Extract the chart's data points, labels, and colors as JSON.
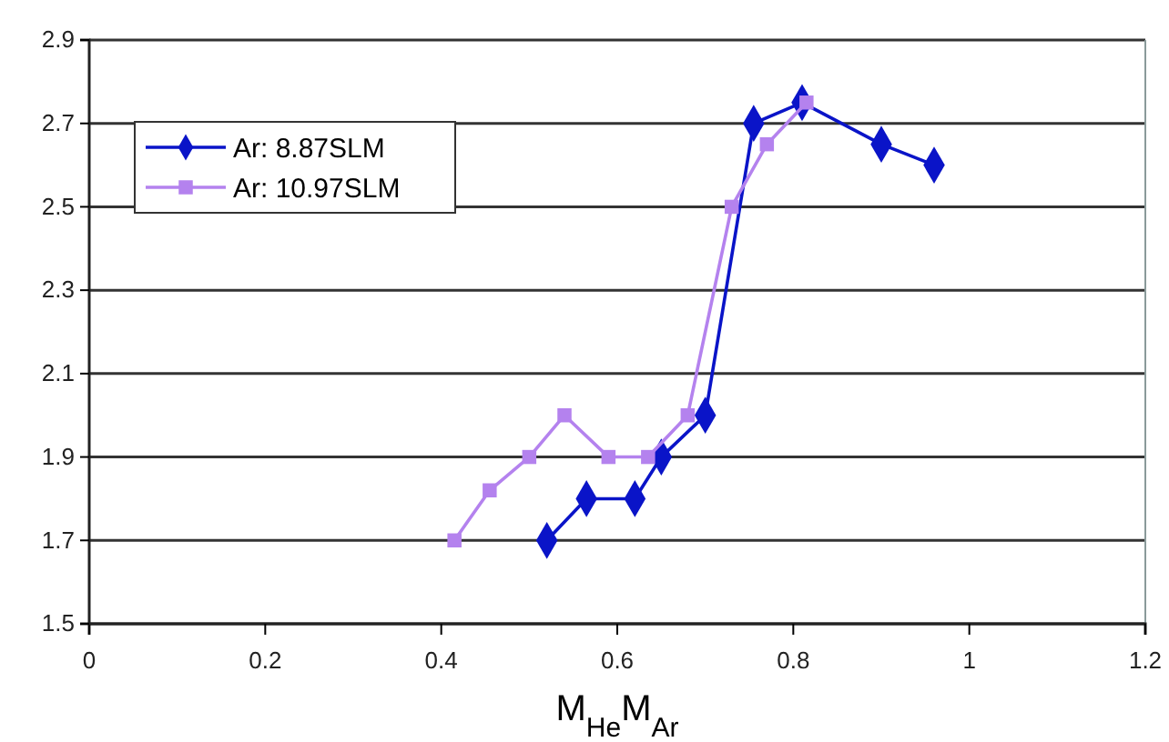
{
  "chart_data": {
    "type": "line",
    "xlabel": "M$_{He}$M$_{Ar}$",
    "xlim": [
      0,
      1.2
    ],
    "xticks": [
      0,
      0.2,
      0.4,
      0.6,
      0.8,
      1,
      1.2
    ],
    "ylim": [
      1.5,
      2.9
    ],
    "yticks": [
      1.5,
      1.7,
      1.9,
      2.1,
      2.3,
      2.5,
      2.7,
      2.9
    ],
    "grid": "y",
    "legend": "top left",
    "series": [
      {
        "name": "Ar: 8.87SLM",
        "color": "#0a14c8",
        "marker": "diamond",
        "x": [
          0.52,
          0.565,
          0.62,
          0.65,
          0.7,
          0.755,
          0.81,
          0.9,
          0.96
        ],
        "values": [
          1.7,
          1.8,
          1.8,
          1.9,
          2.0,
          2.7,
          2.75,
          2.65,
          2.6
        ]
      },
      {
        "name": "Ar: 10.97SLM",
        "color": "#b482ee",
        "marker": "square",
        "x": [
          0.415,
          0.455,
          0.5,
          0.54,
          0.59,
          0.635,
          0.68,
          0.73,
          0.77,
          0.815
        ],
        "values": [
          1.7,
          1.82,
          1.9,
          2.0,
          1.9,
          1.9,
          2.0,
          2.5,
          2.65,
          2.75
        ]
      }
    ]
  }
}
